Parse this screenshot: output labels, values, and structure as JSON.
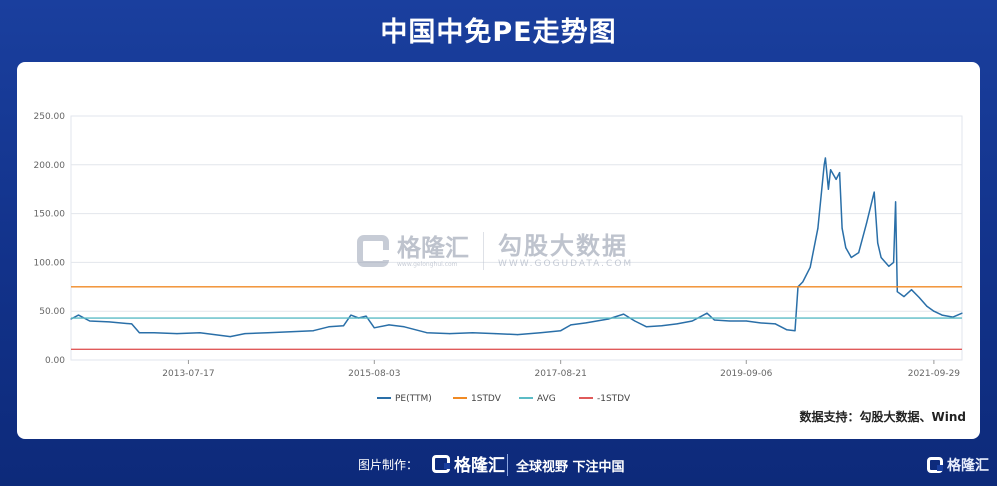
{
  "header": {
    "title": "中国中免PE走势图"
  },
  "watermark": {
    "brand": "格隆汇",
    "brand_url": "www.gelonghui.com",
    "partner": "勾股大数据",
    "partner_url": "WWW.GOGUDATA.COM"
  },
  "source": "数据支持：勾股大数据、Wind",
  "footer": {
    "label": "图片制作：",
    "brand": "格隆汇",
    "slogan": "全球视野 下注中国",
    "corner_brand": "格隆汇"
  },
  "colors": {
    "pe": "#2a6fa8",
    "plus1std": "#f08a24",
    "avg": "#5bbcc6",
    "minus1std": "#e05a5a",
    "grid": "#e2e6ec",
    "axis_text": "#666666"
  },
  "chart_data": {
    "type": "line",
    "title": "中国中免PE走势图",
    "xlabel": "",
    "ylabel": "",
    "ylim": [
      0,
      250
    ],
    "yticks": [
      "0.00",
      "50.00",
      "100.00",
      "150.00",
      "200.00",
      "250.00"
    ],
    "xlim": [
      "2012-04-01",
      "2022-01-20"
    ],
    "xticks": [
      "2013-07-17",
      "2015-08-03",
      "2017-08-21",
      "2019-09-06",
      "2021-09-29"
    ],
    "legend_position": "bottom",
    "series": [
      {
        "name": "PE(TTM)",
        "key": "pe",
        "points": [
          [
            "2012-04-01",
            42
          ],
          [
            "2012-05-01",
            46
          ],
          [
            "2012-06-15",
            40
          ],
          [
            "2012-09-01",
            39
          ],
          [
            "2012-12-01",
            37
          ],
          [
            "2013-01-01",
            28
          ],
          [
            "2013-03-01",
            28
          ],
          [
            "2013-06-01",
            27
          ],
          [
            "2013-09-01",
            28
          ],
          [
            "2014-01-01",
            24
          ],
          [
            "2014-03-01",
            27
          ],
          [
            "2014-06-01",
            28
          ],
          [
            "2014-09-01",
            29
          ],
          [
            "2014-12-01",
            30
          ],
          [
            "2015-02-01",
            34
          ],
          [
            "2015-04-01",
            35
          ],
          [
            "2015-05-01",
            46
          ],
          [
            "2015-06-01",
            43
          ],
          [
            "2015-07-01",
            45
          ],
          [
            "2015-08-03",
            33
          ],
          [
            "2015-10-01",
            36
          ],
          [
            "2015-12-01",
            34
          ],
          [
            "2016-03-01",
            28
          ],
          [
            "2016-06-01",
            27
          ],
          [
            "2016-09-01",
            28
          ],
          [
            "2016-12-01",
            27
          ],
          [
            "2017-03-01",
            26
          ],
          [
            "2017-06-01",
            28
          ],
          [
            "2017-08-21",
            30
          ],
          [
            "2017-10-01",
            36
          ],
          [
            "2017-12-01",
            38
          ],
          [
            "2018-03-01",
            42
          ],
          [
            "2018-05-01",
            47
          ],
          [
            "2018-06-15",
            40
          ],
          [
            "2018-08-01",
            34
          ],
          [
            "2018-10-01",
            35
          ],
          [
            "2018-12-01",
            37
          ],
          [
            "2019-02-01",
            40
          ],
          [
            "2019-04-01",
            48
          ],
          [
            "2019-05-01",
            41
          ],
          [
            "2019-07-01",
            40
          ],
          [
            "2019-09-06",
            40
          ],
          [
            "2019-11-01",
            38
          ],
          [
            "2020-01-01",
            37
          ],
          [
            "2020-02-15",
            31
          ],
          [
            "2020-03-20",
            30
          ],
          [
            "2020-04-01",
            75
          ],
          [
            "2020-04-20",
            80
          ],
          [
            "2020-05-20",
            95
          ],
          [
            "2020-06-20",
            135
          ],
          [
            "2020-07-15",
            200
          ],
          [
            "2020-07-20",
            207
          ],
          [
            "2020-08-01",
            175
          ],
          [
            "2020-08-10",
            195
          ],
          [
            "2020-09-01",
            185
          ],
          [
            "2020-09-15",
            192
          ],
          [
            "2020-09-25",
            135
          ],
          [
            "2020-10-10",
            115
          ],
          [
            "2020-11-01",
            105
          ],
          [
            "2020-12-01",
            110
          ],
          [
            "2021-01-01",
            140
          ],
          [
            "2021-02-01",
            172
          ],
          [
            "2021-02-15",
            120
          ],
          [
            "2021-03-01",
            105
          ],
          [
            "2021-04-01",
            96
          ],
          [
            "2021-04-20",
            100
          ],
          [
            "2021-04-28",
            162
          ],
          [
            "2021-05-05",
            70
          ],
          [
            "2021-06-01",
            65
          ],
          [
            "2021-07-01",
            72
          ],
          [
            "2021-08-01",
            64
          ],
          [
            "2021-09-01",
            55
          ],
          [
            "2021-09-29",
            50
          ],
          [
            "2021-11-01",
            46
          ],
          [
            "2021-12-15",
            44
          ],
          [
            "2022-01-20",
            48
          ]
        ]
      },
      {
        "name": "1STDV",
        "key": "plus1std",
        "constant": 75
      },
      {
        "name": "AVG",
        "key": "avg",
        "constant": 43
      },
      {
        "name": "-1STDV",
        "key": "minus1std",
        "constant": 11
      }
    ]
  }
}
